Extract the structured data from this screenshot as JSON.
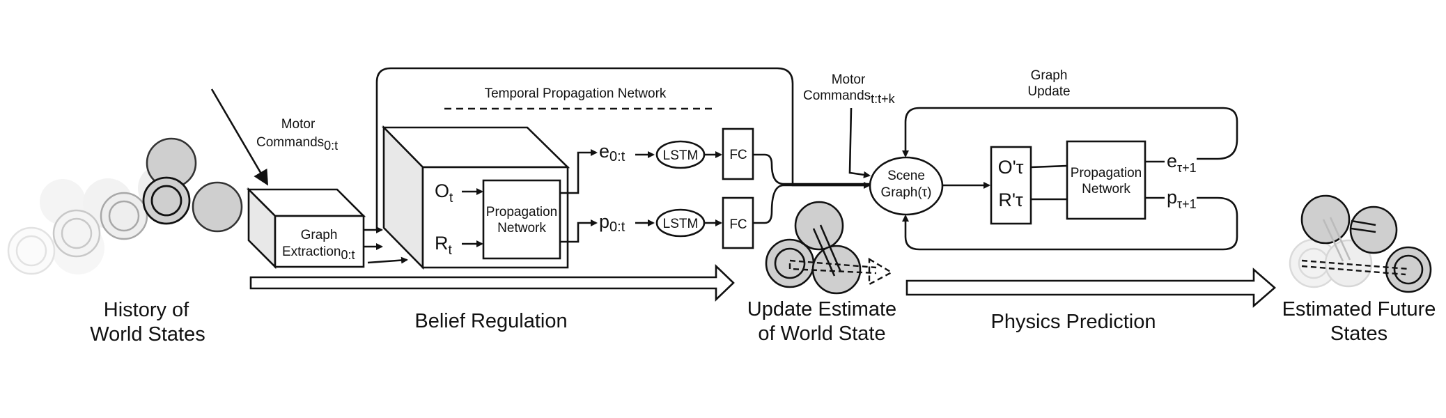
{
  "sections": {
    "history": [
      "History of",
      "World States"
    ],
    "belief": "Belief Regulation",
    "update": [
      "Update Estimate",
      "of World State"
    ],
    "physics": "Physics Prediction",
    "future": [
      "Estimated Future",
      "States"
    ]
  },
  "motor_commands_in": {
    "label": "Motor",
    "line2": "Commands",
    "sub": "0:t"
  },
  "motor_commands_future": {
    "label": "Motor",
    "line2": "Commands",
    "sub": "t:t+k"
  },
  "graph_extraction": {
    "line1": "Graph",
    "line2": "Extraction",
    "sub": "0:t"
  },
  "temporal_network": "Temporal Propagation Network",
  "o_t": {
    "base": "O",
    "sub": "t"
  },
  "r_t": {
    "base": "R",
    "sub": "t"
  },
  "prop_network_1": [
    "Propagation",
    "Network"
  ],
  "e_seq": {
    "base": "e",
    "sub": "0:t"
  },
  "p_seq": {
    "base": "p",
    "sub": "0:t"
  },
  "lstm": "LSTM",
  "fc": "FC",
  "scene_graph": [
    "Scene",
    "Graph(τ)"
  ],
  "o_prime": "O'τ",
  "r_prime": "R'τ",
  "prop_network_2": [
    "Propagation",
    "Network"
  ],
  "e_next": {
    "base": "e",
    "sub": "τ+1"
  },
  "p_next": {
    "base": "p",
    "sub": "τ+1"
  },
  "graph_update": [
    "Graph",
    "Update"
  ]
}
